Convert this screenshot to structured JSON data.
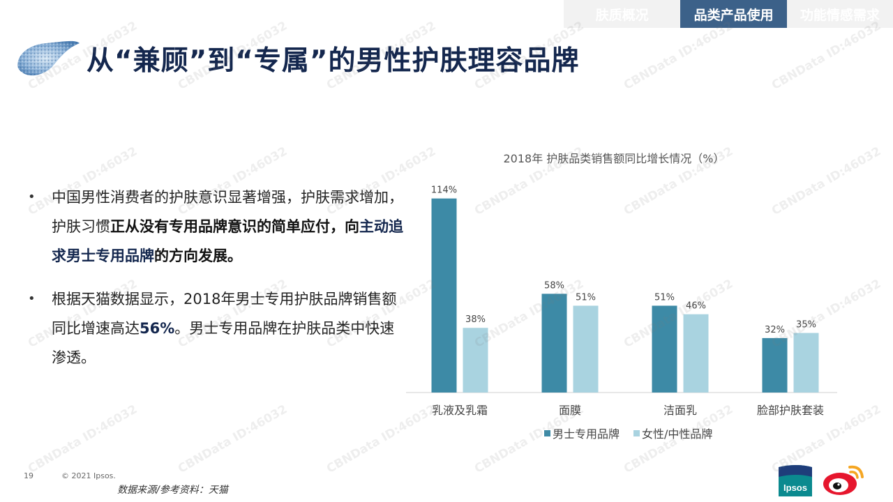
{
  "tabs": [
    {
      "label": "肤质概况",
      "active": false
    },
    {
      "label": "品类产品使用",
      "active": true
    },
    {
      "label": "功能情感需求",
      "active": false
    }
  ],
  "title": "从“兼顾”到“专属”的男性护肤理容品牌",
  "bullets": [
    {
      "plain1": "中国男性消费者的护肤意识显著增强，护肤需求增加，护肤习惯",
      "bold1": "正从没有专用品牌意识的简单应付，向",
      "blue": "主动追求男士专用品牌",
      "bold2": "的方向发展。"
    },
    {
      "plain1": "根据天猫数据显示，2018年男士专用护肤品牌销售额同比增速高达",
      "bold1": "56%",
      "plain2": "。男士专用品牌在护肤品类中快速渗透。"
    }
  ],
  "chart_data": {
    "type": "bar",
    "title": "2018年 护肤品类销售额同比增长情况（%）",
    "categories": [
      "乳液及乳霜",
      "面膜",
      "洁面乳",
      "脸部护肤套装"
    ],
    "series": [
      {
        "name": "男士专用品牌",
        "values": [
          114,
          58,
          51,
          32
        ],
        "color": "#3d8aa6"
      },
      {
        "name": "女性/中性品牌",
        "values": [
          38,
          51,
          46,
          35
        ],
        "color": "#a9d3e0"
      }
    ],
    "value_suffix": "%",
    "ylim": [
      0,
      120
    ],
    "grid": false,
    "legend": "bottom"
  },
  "footer": {
    "page_number": "19",
    "copyright": "© 2021 Ipsos.",
    "source": "数据来源/参考资料：天猫",
    "ipsos_logo_text": "Ipsos"
  },
  "watermark": "CBNData ID:46032"
}
